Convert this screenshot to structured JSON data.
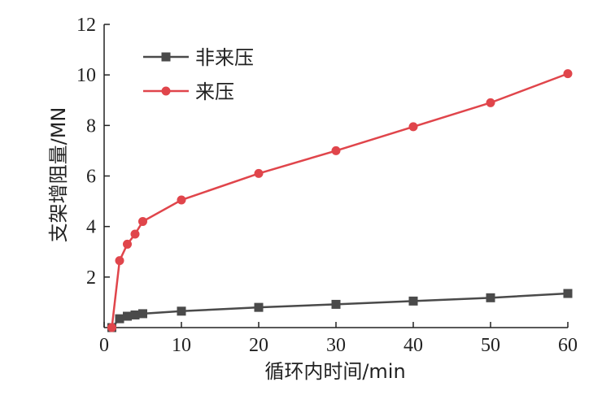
{
  "chart_data": {
    "type": "line",
    "title": "",
    "xlabel": "循环内时间/min",
    "ylabel": "支架增阻量/MN",
    "xlim": [
      0,
      60
    ],
    "ylim": [
      0,
      12
    ],
    "xticks": [
      0,
      10,
      20,
      30,
      40,
      50,
      60
    ],
    "yticks": [
      2,
      4,
      6,
      8,
      10,
      12
    ],
    "grid": false,
    "legend": "top-left",
    "series": [
      {
        "name": "非来压",
        "color": "#4a4a4a",
        "marker": "square",
        "x": [
          1,
          2,
          3,
          4,
          5,
          10,
          20,
          30,
          40,
          50,
          60
        ],
        "y": [
          0,
          0.35,
          0.45,
          0.5,
          0.55,
          0.65,
          0.8,
          0.92,
          1.05,
          1.18,
          1.35
        ]
      },
      {
        "name": "来压",
        "color": "#e0454b",
        "marker": "circle",
        "x": [
          1,
          2,
          3,
          4,
          5,
          10,
          20,
          30,
          40,
          50,
          60
        ],
        "y": [
          0,
          2.65,
          3.3,
          3.7,
          4.2,
          5.05,
          6.1,
          7.0,
          7.95,
          8.9,
          10.05
        ]
      }
    ]
  }
}
